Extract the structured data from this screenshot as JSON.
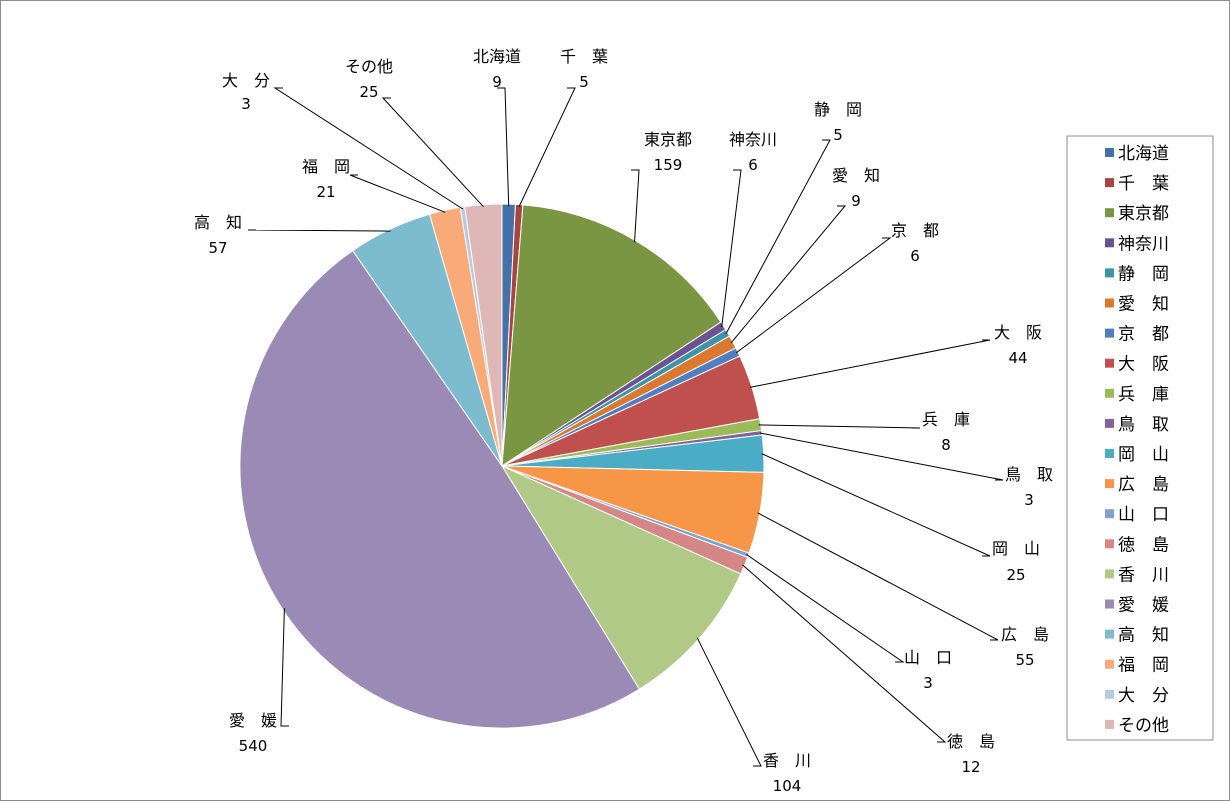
{
  "chart_data": {
    "type": "pie",
    "legend_position": "right",
    "slices": [
      {
        "label": "北海道",
        "value": 9,
        "color": "#4472a8"
      },
      {
        "label": "千　葉",
        "value": 5,
        "color": "#a84542"
      },
      {
        "label": "東京都",
        "value": 159,
        "color": "#7b9642"
      },
      {
        "label": "神奈川",
        "value": 6,
        "color": "#6b5290"
      },
      {
        "label": "静　岡",
        "value": 5,
        "color": "#3d93a8"
      },
      {
        "label": "愛　知",
        "value": 9,
        "color": "#d9792f"
      },
      {
        "label": "京　都",
        "value": 6,
        "color": "#4f7fc1"
      },
      {
        "label": "大　阪",
        "value": 44,
        "color": "#c0504d"
      },
      {
        "label": "兵　庫",
        "value": 8,
        "color": "#9bbb59"
      },
      {
        "label": "鳥　取",
        "value": 3,
        "color": "#8064a2"
      },
      {
        "label": "岡　山",
        "value": 25,
        "color": "#4bacc6"
      },
      {
        "label": "広　島",
        "value": 55,
        "color": "#f79646"
      },
      {
        "label": "山　口",
        "value": 3,
        "color": "#7fa3cf"
      },
      {
        "label": "徳　島",
        "value": 12,
        "color": "#d58786"
      },
      {
        "label": "香　川",
        "value": 104,
        "color": "#b1c986"
      },
      {
        "label": "愛　媛",
        "value": 540,
        "color": "#9c8ab6"
      },
      {
        "label": "高　知",
        "value": 57,
        "color": "#7dbccf"
      },
      {
        "label": "福　岡",
        "value": 21,
        "color": "#f8aa78"
      },
      {
        "label": "大　分",
        "value": 3,
        "color": "#b6c8e2"
      },
      {
        "label": "その他",
        "value": 25,
        "color": "#dfb7b6"
      }
    ]
  }
}
